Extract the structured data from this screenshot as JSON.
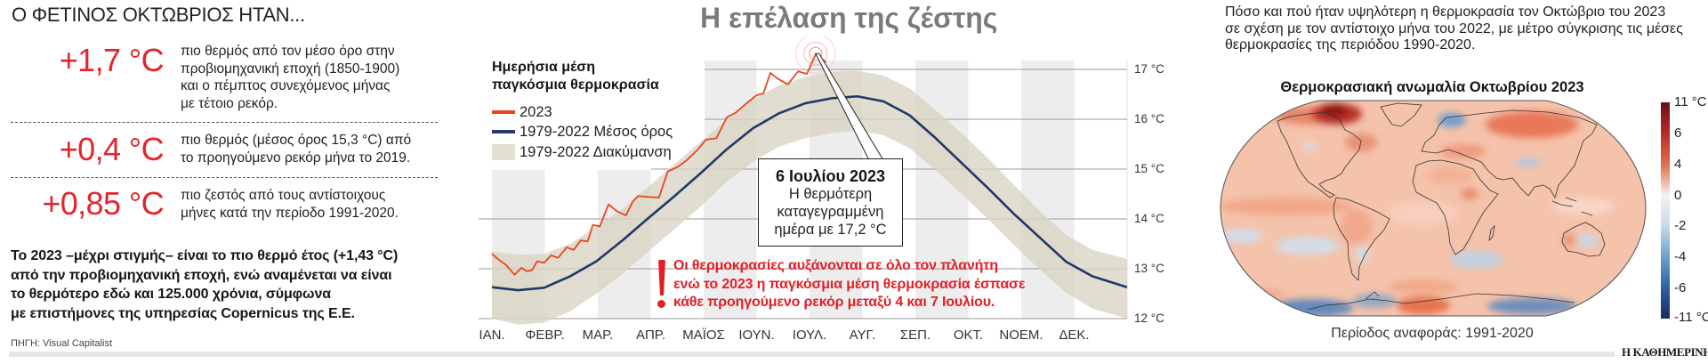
{
  "left_panel": {
    "heading": "Ο ΦΕΤΙΝΟΣ ΟΚΤΩΒΡΙΟΣ ΗΤΑΝ...",
    "stats": [
      {
        "value": "+1,7 °C",
        "lines": [
          "πιο θερμός από τον μέσο όρο στην",
          "προβιομηχανική εποχή (1850-1900)",
          "και ο πέμπτος συνεχόμενος μήνας",
          "με τέτοιο ρεκόρ."
        ]
      },
      {
        "value": "+0,4 °C",
        "lines": [
          "πιο θερμός (μέσος όρος 15,3 °C) από",
          "το προηγούμενο ρεκόρ μήνα το 2019."
        ]
      },
      {
        "value": "+0,85 °C",
        "lines": [
          "πιο ζεστός από τους αντίστοιχους",
          "μήνες κατά την περίοδο 1991-2020."
        ]
      }
    ],
    "summary_lines": [
      "Το 2023 –μέχρι στιγμής– είναι το πιο θερμό έτος (+1,43 °C)",
      "από την προβιομηχανική εποχή, ενώ αναμένεται να είναι",
      "το θερμότερο εδώ και 125.000 χρόνια, σύμφωνα",
      "με επιστήμονες της υπηρεσίας Copernicus της Ε.Ε."
    ],
    "source": "ΠΗΓΗ: Visual Capitalist"
  },
  "right_panel": {
    "intro_lines": [
      "Πόσο και πού ήταν υψηλότερη η θερμοκρασία τον Οκτώβριο του 2023",
      "σε σχέση με τον αντίστοιχο μήνα του 2022, με μέτρο σύγκρισης τις μέσες",
      "θερμοκρασίες της περιόδου 1990-2020."
    ]
  },
  "footer": {
    "brand": "Η ΚΑΘΗΜΕΡΙΝΗ"
  },
  "colors": {
    "accent_red": "#e3242b",
    "alert_red": "#e41e26",
    "series_2023": "#e8461e",
    "series_mean": "#1f3868",
    "series_range": "#d9d4c4",
    "month_band": "#ecedec",
    "title_gray": "#7b7b7b"
  },
  "chart_data": [
    {
      "type": "line",
      "title": "Η επέλαση της ζέστης",
      "subtitle": "Ημερήσια μέση παγκόσμια θερμοκρασία",
      "legend_title_lines": [
        "Ημερήσια μέση",
        "παγκόσμια θερμοκρασία"
      ],
      "xlabel": "",
      "ylabel": "",
      "x_unit": "day of year",
      "xlim": [
        0,
        365
      ],
      "categories": [
        "ΙΑΝ.",
        "ΦΕΒΡ.",
        "ΜΑΡ.",
        "ΑΠΡ.",
        "ΜΑΪΟΣ",
        "ΙΟΥΝ.",
        "ΙΟΥΛ.",
        "ΑΥΓ.",
        "ΣΕΠ.",
        "ΟΚΤ.",
        "ΝΟΕΜ.",
        "ΔΕΚ."
      ],
      "ylim": [
        12,
        17
      ],
      "yticks": [
        17,
        16,
        15,
        14,
        13,
        12
      ],
      "ytick_labels": [
        "17 °C",
        "16 °C",
        "15 °C",
        "14 °C",
        "13 °C",
        "12 °C"
      ],
      "grid": "horizontal",
      "legend_position": "top-left",
      "series": [
        {
          "name": "2023",
          "color": "#e8461e",
          "x": [
            0,
            4,
            8,
            13,
            17,
            20,
            23,
            26,
            30,
            34,
            38,
            43,
            47,
            51,
            55,
            58,
            62,
            67,
            72,
            77,
            81,
            84,
            90,
            96,
            101,
            107,
            112,
            118,
            123,
            129,
            135,
            140,
            147,
            152,
            156,
            160,
            164,
            170,
            176,
            181,
            186,
            189,
            192
          ],
          "values": [
            13.3,
            13.18,
            13.08,
            12.88,
            13.02,
            12.95,
            12.97,
            13.15,
            13.12,
            13.27,
            13.22,
            13.43,
            13.38,
            13.57,
            13.55,
            13.88,
            13.85,
            14.29,
            14.15,
            14.07,
            14.35,
            14.46,
            14.44,
            14.43,
            14.95,
            15.05,
            15.18,
            15.38,
            15.59,
            15.62,
            16.04,
            16.13,
            16.34,
            16.48,
            16.52,
            16.93,
            16.82,
            16.7,
            16.96,
            16.91,
            17.3,
            17.22,
            17.15
          ]
        },
        {
          "name": "1979-2022 Μέσος όρος",
          "color": "#1f3868",
          "x": [
            0,
            15,
            30,
            45,
            60,
            75,
            90,
            105,
            120,
            135,
            150,
            165,
            180,
            195,
            210,
            225,
            240,
            255,
            270,
            285,
            300,
            315,
            330,
            345,
            365
          ],
          "values": [
            12.63,
            12.57,
            12.62,
            12.85,
            13.15,
            13.57,
            14.02,
            14.46,
            14.92,
            15.4,
            15.82,
            16.12,
            16.32,
            16.42,
            16.46,
            16.36,
            16.08,
            15.62,
            15.12,
            14.62,
            14.1,
            13.62,
            13.14,
            12.85,
            12.63
          ]
        },
        {
          "name": "1979-2022 Διακύμανση",
          "type": "area-range",
          "color": "#d9d4c4",
          "x": [
            0,
            15,
            30,
            45,
            60,
            75,
            90,
            105,
            120,
            135,
            150,
            165,
            180,
            195,
            210,
            225,
            240,
            255,
            270,
            285,
            300,
            315,
            330,
            345,
            365
          ],
          "upper": [
            13.35,
            13.28,
            13.3,
            13.5,
            13.85,
            14.2,
            14.65,
            15.1,
            15.55,
            16.0,
            16.4,
            16.68,
            16.85,
            16.95,
            16.97,
            16.88,
            16.62,
            16.18,
            15.72,
            15.22,
            14.68,
            14.15,
            13.68,
            13.38,
            13.2
          ],
          "lower": [
            12.0,
            11.88,
            11.92,
            12.15,
            12.5,
            12.9,
            13.35,
            13.8,
            14.25,
            14.75,
            15.15,
            15.45,
            15.62,
            15.72,
            15.78,
            15.68,
            15.42,
            14.98,
            14.5,
            14.0,
            13.48,
            12.98,
            12.52,
            12.2,
            12.0
          ]
        }
      ],
      "annotations": [
        {
          "kind": "callout",
          "target_day": 186,
          "title": "6 Ιουλίου 2023",
          "lines": [
            "Η θερμότερη",
            "καταγεγραμμένη",
            "ημέρα με 17,2 °C"
          ]
        },
        {
          "kind": "alert",
          "icon": "!",
          "lines": [
            "Οι θερμοκρασίες αυξάνονται σε όλο τον πλανήτη",
            "ενώ το 2023 η παγκόσμια μέση θερμοκρασία έσπασε",
            "κάθε προηγούμενο ρεκόρ μεταξύ 4 και 7 Ιουλίου."
          ]
        }
      ]
    },
    {
      "type": "heatmap",
      "title": "Θερμοκρασιακή ανωμαλία Οκτωβρίου 2023",
      "subtitle": "Περίοδος αναφοράς: 1991-2020",
      "projection": "world map (Robinson-like)",
      "colorbar": {
        "range": [
          -11,
          11
        ],
        "unit": "°C",
        "tick_labels": [
          "11 °C",
          "6",
          "4",
          "0",
          "-2",
          "-4",
          "-6",
          "-11 °C"
        ],
        "colors": [
          "#6b0e1a",
          "#b72a22",
          "#e0704f",
          "#f7f2ef",
          "#c6daea",
          "#6a9fcc",
          "#2b5fa3",
          "#1a2b5e"
        ]
      },
      "notable_regions": [
        {
          "region": "Arctic Canada / Greenland",
          "anomaly": "strongly positive"
        },
        {
          "region": "Siberia",
          "anomaly": "positive"
        },
        {
          "region": "Scandinavia",
          "anomaly": "negative"
        },
        {
          "region": "Antarctica (parts)",
          "anomaly": "negative"
        },
        {
          "region": "Most of the globe",
          "anomaly": "mildly positive"
        }
      ]
    }
  ]
}
